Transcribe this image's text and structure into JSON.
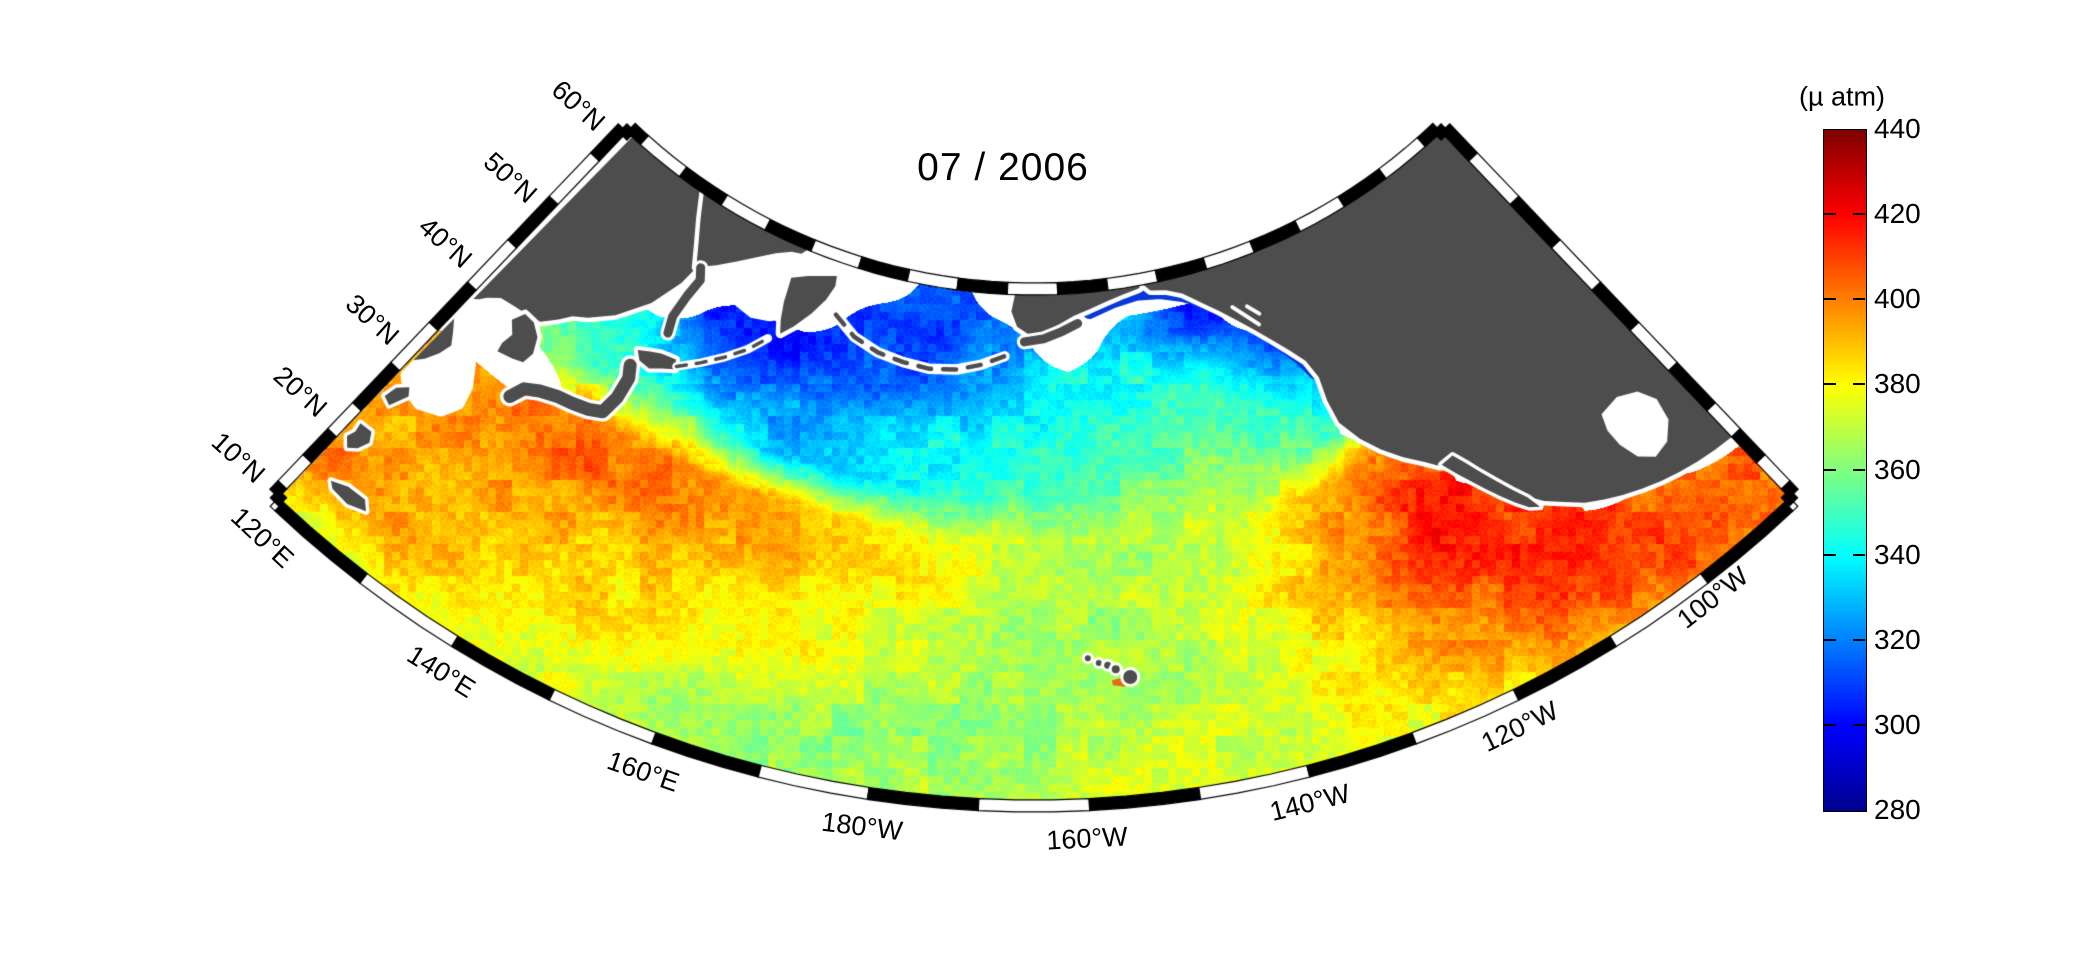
{
  "title": "07 / 2006",
  "colorbar": {
    "unit_label": "(µ atm)",
    "vmin": 280,
    "vmax": 440,
    "ticks": [
      440,
      420,
      400,
      380,
      360,
      340,
      320,
      300,
      280
    ],
    "colormap": "jet",
    "colormap_stops": [
      [
        0.0,
        "#00008f"
      ],
      [
        0.125,
        "#0000ff"
      ],
      [
        0.375,
        "#00ffff"
      ],
      [
        0.625,
        "#ffff00"
      ],
      [
        0.875,
        "#ff0000"
      ],
      [
        1.0,
        "#7f0000"
      ]
    ]
  },
  "graticule": {
    "lat_labels": [
      {
        "text": "60°N",
        "lat": 60
      },
      {
        "text": "50°N",
        "lat": 50
      },
      {
        "text": "40°N",
        "lat": 40
      },
      {
        "text": "30°N",
        "lat": 30
      },
      {
        "text": "20°N",
        "lat": 20
      },
      {
        "text": "10°N",
        "lat": 10
      }
    ],
    "lon_labels": [
      {
        "text": "120°E",
        "lon": 120
      },
      {
        "text": "140°E",
        "lon": 140
      },
      {
        "text": "160°E",
        "lon": 160
      },
      {
        "text": "180°W",
        "lon": 180
      },
      {
        "text": "160°W",
        "lon": 200
      },
      {
        "text": "140°W",
        "lon": 220
      },
      {
        "text": "120°W",
        "lon": 240
      },
      {
        "text": "100°W",
        "lon": 260
      }
    ]
  },
  "colors": {
    "land": "#4d4d4d",
    "no_data": "#ffffff",
    "frame": "#000000",
    "coastal_upwelling_blue": "#0838d8",
    "coastal_cyan": "#28c8b8",
    "hawaii_plume_orange": "#e86b12"
  },
  "chart_data": {
    "type": "heatmap",
    "title": "07 / 2006",
    "variable": "sea-surface pCO2",
    "units": "µ atm",
    "colormap": "jet",
    "value_range": [
      280,
      440
    ],
    "projection": "conic (fan-shaped), North Pacific, lat 0-60N, lon 120E-90W",
    "lat_axis_ticks": [
      10,
      20,
      30,
      40,
      50,
      60
    ],
    "lon_axis_ticks": [
      120,
      140,
      160,
      180,
      200,
      220,
      240,
      260
    ],
    "lats": [
      0,
      5,
      10,
      15,
      20,
      25,
      30,
      35,
      40,
      45,
      50,
      55,
      60
    ],
    "lons": [
      120,
      130,
      140,
      150,
      160,
      170,
      180,
      190,
      200,
      210,
      220,
      230,
      240,
      250,
      260,
      270
    ],
    "null_means": "no data or land (rendered white / gray)",
    "values": [
      [
        375,
        380,
        378,
        372,
        368,
        366,
        367,
        370,
        372,
        374,
        375,
        378,
        385,
        395,
        403,
        405
      ],
      [
        388,
        390,
        382,
        375,
        368,
        364,
        363,
        366,
        370,
        373,
        374,
        380,
        390,
        405,
        408,
        405
      ],
      [
        400,
        395,
        385,
        380,
        372,
        366,
        363,
        364,
        368,
        372,
        375,
        385,
        398,
        412,
        408,
        402
      ],
      [
        398,
        392,
        388,
        384,
        378,
        372,
        366,
        364,
        366,
        370,
        376,
        388,
        402,
        412,
        405,
        null
      ],
      [
        395,
        392,
        390,
        386,
        383,
        378,
        372,
        366,
        363,
        368,
        375,
        390,
        408,
        415,
        null,
        null
      ],
      [
        392,
        398,
        395,
        390,
        386,
        380,
        375,
        368,
        364,
        368,
        380,
        398,
        418,
        408,
        null,
        null
      ],
      [
        390,
        402,
        405,
        402,
        396,
        390,
        382,
        375,
        368,
        368,
        378,
        395,
        415,
        null,
        null,
        null
      ],
      [
        null,
        null,
        398,
        400,
        395,
        388,
        380,
        374,
        370,
        368,
        375,
        390,
        405,
        null,
        null,
        null
      ],
      [
        null,
        358,
        352,
        358,
        332,
        332,
        340,
        348,
        355,
        360,
        362,
        355,
        null,
        null,
        null,
        null
      ],
      [
        null,
        348,
        342,
        315,
        322,
        330,
        338,
        345,
        350,
        352,
        350,
        340,
        null,
        null,
        null,
        null
      ],
      [
        null,
        null,
        null,
        305,
        302,
        312,
        318,
        330,
        342,
        345,
        345,
        315,
        null,
        null,
        null,
        null
      ],
      [
        null,
        null,
        null,
        null,
        null,
        308,
        308,
        322,
        null,
        332,
        302,
        null,
        null,
        null,
        null,
        null
      ],
      [
        null,
        null,
        null,
        null,
        null,
        null,
        312,
        null,
        null,
        null,
        null,
        null,
        null,
        null,
        null,
        null
      ]
    ],
    "features": [
      "low pCO2 (dark blue ~295-315) in Sea of Okhotsk, Oyashio/subarctic front band 40-47N west of 180, Bering Sea, and a narrow coastal strip along Gulf of Alaska / British Columbia / Washington",
      "high pCO2 (orange-red ~395-420) Kuroshio band 25-36N 125E-180, subtropics, offshore Baja California and Mexican coast hotspots",
      "moderate greens (~355-375) across central gyre around Hawaii",
      "no-data white: northern Sea of Okhotsk, East China Sea shelf, parts of Bering shelf, Gulf of California, Gulf of Mexico"
    ]
  }
}
